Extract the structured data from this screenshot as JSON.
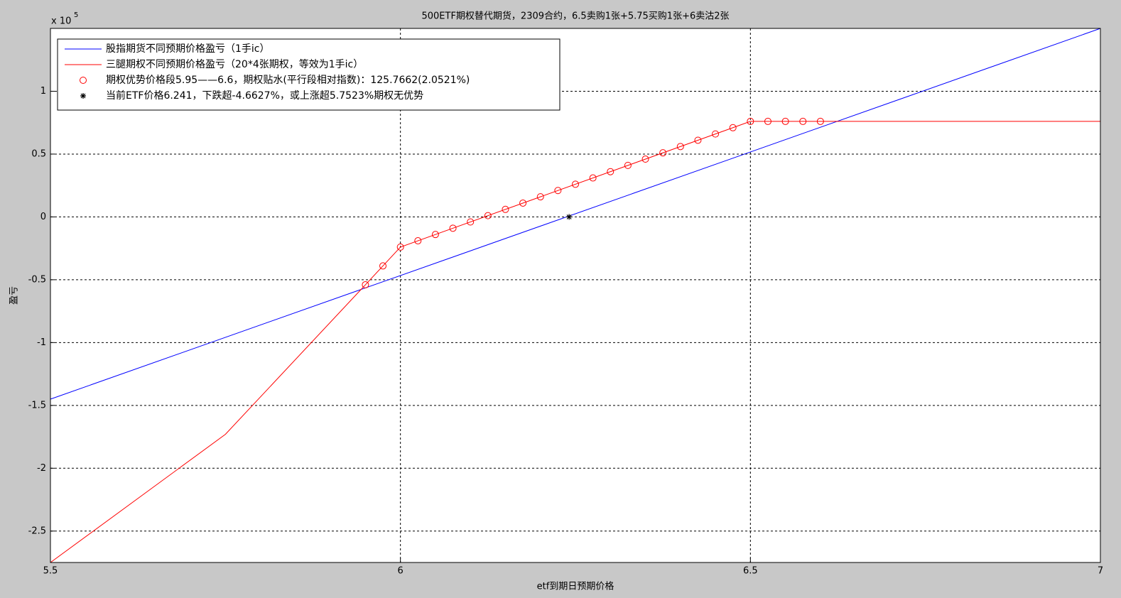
{
  "chart_data": {
    "type": "line",
    "title": "500ETF期权替代期货，2309合约，6.5卖购1张+5.75买购1张+6卖沽2张",
    "x_label": "etf到期日预期价格",
    "y_label": "盈亏",
    "y_scale_label": {
      "base": "x 10",
      "exponent": "5"
    },
    "xlim": [
      5.5,
      7
    ],
    "ylim": [
      -2.75,
      1.5
    ],
    "xticks": [
      5.5,
      6,
      6.5,
      7
    ],
    "yticks": [
      -2.5,
      -2,
      -1.5,
      -1,
      -0.5,
      0,
      0.5,
      1
    ],
    "grid": true,
    "legend_position": "upper left",
    "series": [
      {
        "name": "股指期货不同预期价格盈亏（1手ic）",
        "color": "#0000ff",
        "line": true,
        "x": [
          5.5,
          7
        ],
        "values": [
          -1.45,
          1.5
        ]
      },
      {
        "name": "三腿期权不同预期价格盈亏（20*4张期权，等效为1手ic）",
        "color": "#ff0000",
        "line": true,
        "x": [
          5.5,
          5.75,
          5.95,
          5.975,
          6.0,
          6.5,
          7
        ],
        "values": [
          -2.75,
          -1.73,
          -0.54,
          -0.39,
          -0.24,
          0.76,
          0.76
        ]
      },
      {
        "name": "期权优势价格段5.95——6.6，期权贴水(平行段相对指数)：125.7662(2.0521%)",
        "color": "#ff0000",
        "line": false,
        "marker": "o",
        "x": [
          5.95,
          5.975,
          6.0,
          6.025,
          6.05,
          6.075,
          6.1,
          6.125,
          6.15,
          6.175,
          6.2,
          6.225,
          6.25,
          6.275,
          6.3,
          6.325,
          6.35,
          6.375,
          6.4,
          6.425,
          6.45,
          6.475,
          6.5,
          6.525,
          6.55,
          6.575,
          6.6
        ],
        "values": [
          -0.54,
          -0.39,
          -0.24,
          -0.19,
          -0.14,
          -0.09,
          -0.04,
          0.01,
          0.06,
          0.11,
          0.16,
          0.21,
          0.26,
          0.31,
          0.36,
          0.41,
          0.46,
          0.51,
          0.56,
          0.61,
          0.66,
          0.71,
          0.76,
          0.76,
          0.76,
          0.76,
          0.76
        ]
      },
      {
        "name": "当前ETF价格6.241，下跌超-4.6627%，或上涨超5.7523%期权无优势",
        "color": "#000000",
        "line": false,
        "marker": "*",
        "x": [
          6.241
        ],
        "values": [
          0
        ]
      }
    ]
  }
}
